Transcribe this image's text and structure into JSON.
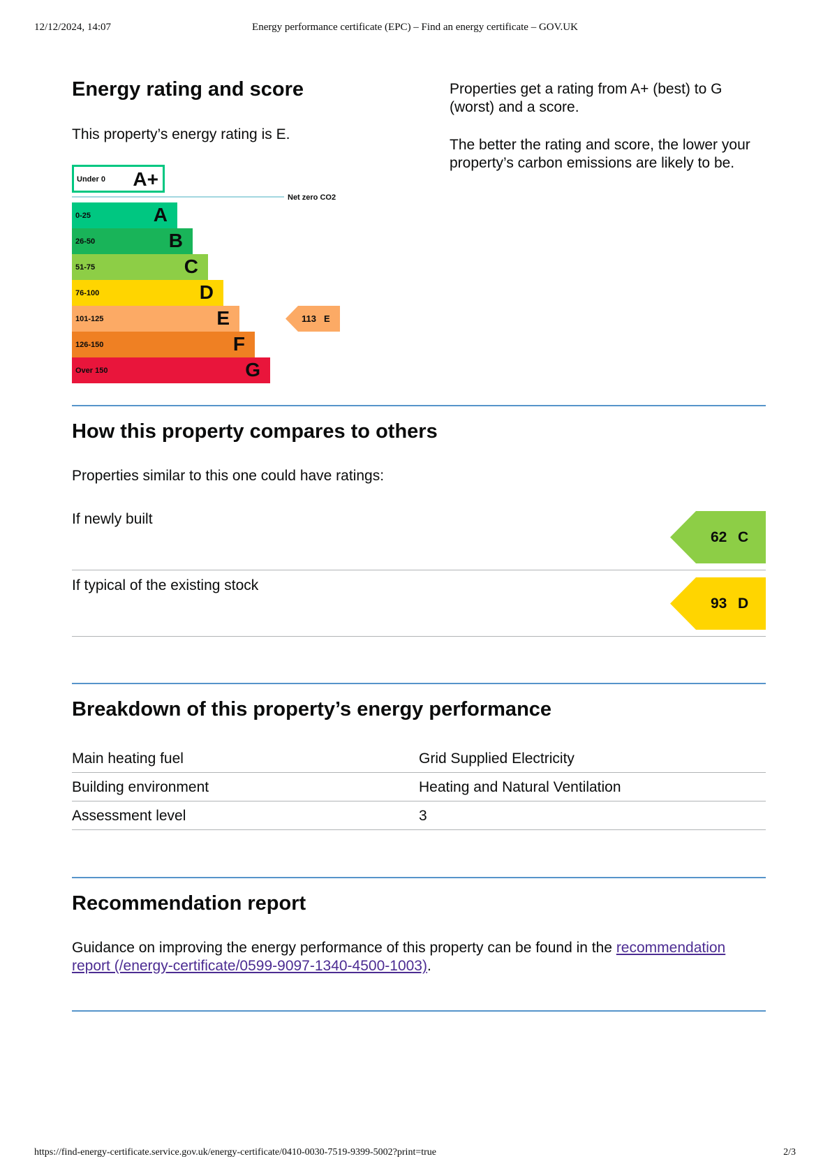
{
  "print_header": {
    "datetime": "12/12/2024, 14:07",
    "page_title": "Energy performance certificate (EPC) – Find an energy certificate – GOV.UK"
  },
  "rating_section": {
    "heading": "Energy rating and score",
    "rating_text": "This property’s energy rating is E.",
    "explain_1": "Properties get a rating from A+ (best) to G (worst) and a score.",
    "explain_2": "The better the rating and score, the lower your property’s carbon emissions are likely to be.",
    "chart": {
      "aplus": {
        "range": "Under 0",
        "letter": "A+",
        "color": "#00c781"
      },
      "net_zero_label": "Net zero CO2",
      "bands": [
        {
          "range": "0-25",
          "letter": "A",
          "color": "#00c781"
        },
        {
          "range": "26-50",
          "letter": "B",
          "color": "#19b459"
        },
        {
          "range": "51-75",
          "letter": "C",
          "color": "#8dce46"
        },
        {
          "range": "76-100",
          "letter": "D",
          "color": "#ffd500"
        },
        {
          "range": "101-125",
          "letter": "E",
          "color": "#fcaa65"
        },
        {
          "range": "126-150",
          "letter": "F",
          "color": "#ef8023"
        },
        {
          "range": "Over 150",
          "letter": "G",
          "color": "#e9153b"
        }
      ],
      "current": {
        "score": "113",
        "band": "E",
        "color": "#fcaa65"
      }
    }
  },
  "compare_section": {
    "heading": "How this property compares to others",
    "intro": "Properties similar to this one could have ratings:",
    "rows": [
      {
        "label": "If newly built",
        "score": "62",
        "band": "C",
        "color": "#8dce46"
      },
      {
        "label": "If typical of the existing stock",
        "score": "93",
        "band": "D",
        "color": "#ffd500"
      }
    ]
  },
  "breakdown_section": {
    "heading": "Breakdown of this property’s energy performance",
    "rows": [
      {
        "label": "Main heating fuel",
        "value": "Grid Supplied Electricity"
      },
      {
        "label": "Building environment",
        "value": "Heating and Natural Ventilation"
      },
      {
        "label": "Assessment level",
        "value": "3"
      }
    ]
  },
  "recommendation_section": {
    "heading": "Recommendation report",
    "text_before": "Guidance on improving the energy performance of this property can be found in the ",
    "link_text": "recommendation report (/energy-certificate/0599-9097-1340-4500-1003)",
    "text_after": "."
  },
  "print_footer": {
    "url": "https://find-energy-certificate.service.gov.uk/energy-certificate/0410-0030-7519-9399-5002?print=true",
    "page": "2/3"
  }
}
